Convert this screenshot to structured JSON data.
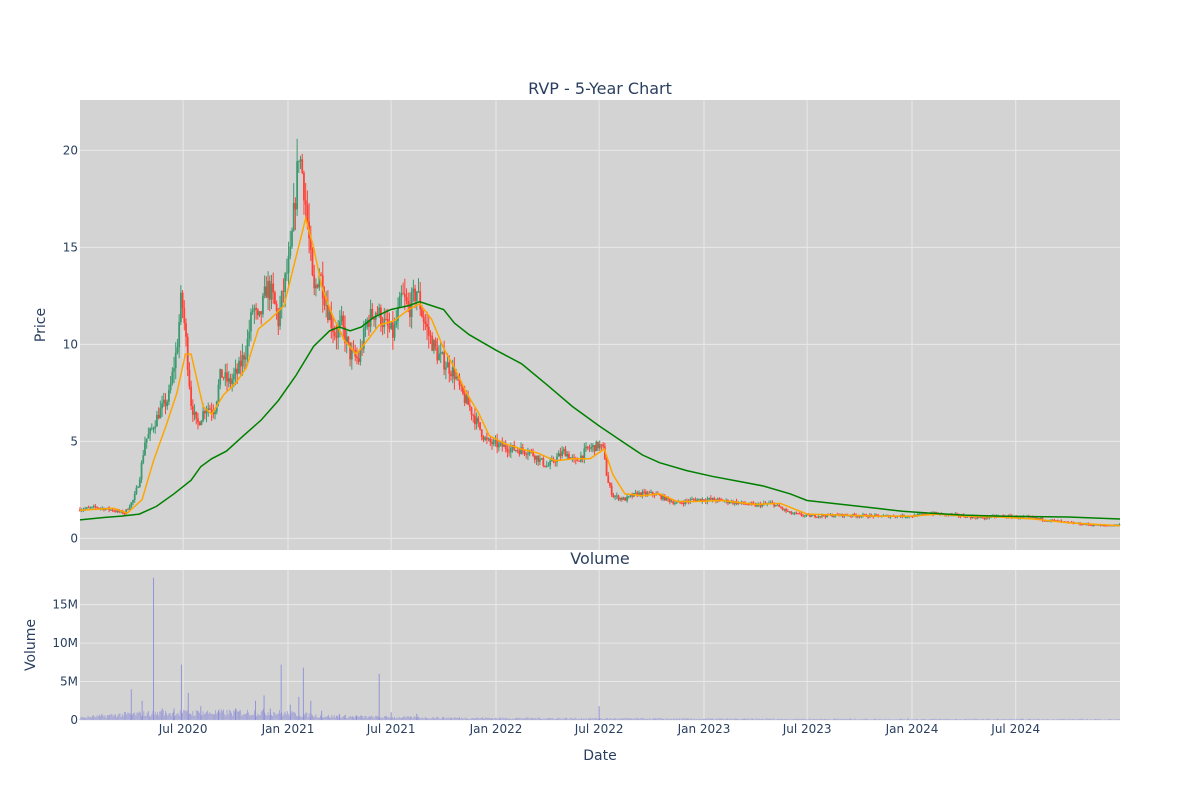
{
  "chart_data": [
    {
      "type": "candlestick",
      "title": "RVP - 5-Year Chart",
      "ylabel": "Price",
      "ylim": [
        -0.6,
        22.6
      ],
      "xlim": [
        "2020-01-02",
        "2024-12-31"
      ],
      "y_ticks": [
        0,
        5,
        10,
        15,
        20
      ],
      "grid": true,
      "colors": {
        "up": "#3d9970",
        "down": "#ff4136",
        "ma_short": "#ffa500",
        "ma_long": "#008000",
        "plot_bg": "#d3d3d3",
        "grid": "#e8e8e8"
      },
      "price_path": [
        [
          "2020-01-02",
          1.5
        ],
        [
          "2020-02-01",
          1.6
        ],
        [
          "2020-03-01",
          1.45
        ],
        [
          "2020-03-20",
          1.3
        ],
        [
          "2020-04-05",
          2.0
        ],
        [
          "2020-04-15",
          3.0
        ],
        [
          "2020-04-25",
          5.0
        ],
        [
          "2020-05-05",
          5.5
        ],
        [
          "2020-05-20",
          6.5
        ],
        [
          "2020-06-05",
          7.2
        ],
        [
          "2020-06-20",
          9.8
        ],
        [
          "2020-06-28",
          12.5
        ],
        [
          "2020-07-05",
          10.5
        ],
        [
          "2020-07-15",
          7.0
        ],
        [
          "2020-07-25",
          5.8
        ],
        [
          "2020-08-10",
          6.8
        ],
        [
          "2020-08-25",
          6.6
        ],
        [
          "2020-09-05",
          8.5
        ],
        [
          "2020-09-20",
          8.0
        ],
        [
          "2020-10-05",
          8.6
        ],
        [
          "2020-10-20",
          9.8
        ],
        [
          "2020-11-01",
          12.0
        ],
        [
          "2020-11-10",
          11.0
        ],
        [
          "2020-11-25",
          13.0
        ],
        [
          "2020-12-05",
          12.5
        ],
        [
          "2020-12-15",
          11.2
        ],
        [
          "2020-12-25",
          13.0
        ],
        [
          "2021-01-05",
          14.5
        ],
        [
          "2021-01-15",
          18.0
        ],
        [
          "2021-01-20",
          20.0
        ],
        [
          "2021-01-28",
          18.5
        ],
        [
          "2021-02-05",
          16.0
        ],
        [
          "2021-02-15",
          12.5
        ],
        [
          "2021-02-25",
          13.8
        ],
        [
          "2021-03-10",
          12.0
        ],
        [
          "2021-03-25",
          10.5
        ],
        [
          "2021-04-05",
          11.0
        ],
        [
          "2021-04-20",
          9.5
        ],
        [
          "2021-05-05",
          9.2
        ],
        [
          "2021-05-20",
          11.2
        ],
        [
          "2021-06-05",
          11.8
        ],
        [
          "2021-06-20",
          11.0
        ],
        [
          "2021-07-05",
          10.5
        ],
        [
          "2021-07-20",
          12.5
        ],
        [
          "2021-08-01",
          11.8
        ],
        [
          "2021-08-15",
          12.8
        ],
        [
          "2021-08-25",
          11.5
        ],
        [
          "2021-09-05",
          10.5
        ],
        [
          "2021-09-20",
          9.5
        ],
        [
          "2021-10-05",
          9.0
        ],
        [
          "2021-10-20",
          8.5
        ],
        [
          "2021-11-01",
          7.5
        ],
        [
          "2021-11-15",
          6.8
        ],
        [
          "2021-12-01",
          5.8
        ],
        [
          "2021-12-15",
          5.0
        ],
        [
          "2022-01-05",
          4.8
        ],
        [
          "2022-02-01",
          4.6
        ],
        [
          "2022-03-01",
          4.5
        ],
        [
          "2022-04-01",
          3.7
        ],
        [
          "2022-05-01",
          4.5
        ],
        [
          "2022-05-20",
          3.9
        ],
        [
          "2022-06-10",
          4.6
        ],
        [
          "2022-07-01",
          4.8
        ],
        [
          "2022-07-10",
          4.5
        ],
        [
          "2022-07-15",
          3.0
        ],
        [
          "2022-07-25",
          2.2
        ],
        [
          "2022-08-15",
          2.0
        ],
        [
          "2022-09-05",
          2.3
        ],
        [
          "2022-10-05",
          2.3
        ],
        [
          "2022-11-15",
          1.8
        ],
        [
          "2022-12-15",
          2.0
        ],
        [
          "2023-01-15",
          2.0
        ],
        [
          "2023-02-15",
          1.9
        ],
        [
          "2023-04-01",
          1.7
        ],
        [
          "2023-05-01",
          1.8
        ],
        [
          "2023-06-01",
          1.3
        ],
        [
          "2023-07-01",
          1.15
        ],
        [
          "2023-09-01",
          1.2
        ],
        [
          "2023-11-01",
          1.15
        ],
        [
          "2024-01-01",
          1.15
        ],
        [
          "2024-02-01",
          1.3
        ],
        [
          "2024-03-15",
          1.2
        ],
        [
          "2024-05-01",
          1.05
        ],
        [
          "2024-06-01",
          1.15
        ],
        [
          "2024-08-01",
          1.05
        ],
        [
          "2024-10-01",
          0.8
        ],
        [
          "2024-12-01",
          0.65
        ],
        [
          "2024-12-31",
          0.7
        ]
      ],
      "ma_short": [
        [
          "2020-01-02",
          1.45
        ],
        [
          "2020-03-01",
          1.55
        ],
        [
          "2020-03-25",
          1.3
        ],
        [
          "2020-04-20",
          2.0
        ],
        [
          "2020-05-10",
          4.0
        ],
        [
          "2020-06-01",
          5.8
        ],
        [
          "2020-06-20",
          7.5
        ],
        [
          "2020-07-05",
          9.5
        ],
        [
          "2020-07-15",
          9.5
        ],
        [
          "2020-08-05",
          6.8
        ],
        [
          "2020-08-20",
          6.4
        ],
        [
          "2020-09-10",
          7.4
        ],
        [
          "2020-10-01",
          8.0
        ],
        [
          "2020-10-20",
          8.8
        ],
        [
          "2020-11-10",
          10.8
        ],
        [
          "2020-12-01",
          11.3
        ],
        [
          "2020-12-25",
          12.0
        ],
        [
          "2021-01-15",
          14.5
        ],
        [
          "2021-02-01",
          16.5
        ],
        [
          "2021-02-15",
          15.0
        ],
        [
          "2021-03-01",
          13.0
        ],
        [
          "2021-03-20",
          11.5
        ],
        [
          "2021-04-10",
          10.2
        ],
        [
          "2021-05-01",
          9.5
        ],
        [
          "2021-05-20",
          10.2
        ],
        [
          "2021-06-10",
          11.0
        ],
        [
          "2021-07-05",
          11.2
        ],
        [
          "2021-08-01",
          11.8
        ],
        [
          "2021-08-20",
          12.1
        ],
        [
          "2021-09-10",
          11.3
        ],
        [
          "2021-10-01",
          9.8
        ],
        [
          "2021-10-20",
          8.8
        ],
        [
          "2021-11-10",
          7.5
        ],
        [
          "2021-12-01",
          6.5
        ],
        [
          "2021-12-20",
          5.3
        ],
        [
          "2022-01-15",
          4.9
        ],
        [
          "2022-02-15",
          4.6
        ],
        [
          "2022-03-15",
          4.4
        ],
        [
          "2022-04-15",
          4.0
        ],
        [
          "2022-05-15",
          4.1
        ],
        [
          "2022-06-15",
          4.1
        ],
        [
          "2022-07-10",
          4.6
        ],
        [
          "2022-07-25",
          3.3
        ],
        [
          "2022-08-15",
          2.3
        ],
        [
          "2022-09-15",
          2.2
        ],
        [
          "2022-10-15",
          2.3
        ],
        [
          "2022-11-15",
          1.9
        ],
        [
          "2022-12-15",
          1.9
        ],
        [
          "2023-02-01",
          1.95
        ],
        [
          "2023-04-01",
          1.75
        ],
        [
          "2023-05-15",
          1.8
        ],
        [
          "2023-07-01",
          1.25
        ],
        [
          "2023-09-01",
          1.2
        ],
        [
          "2023-11-01",
          1.15
        ],
        [
          "2024-01-01",
          1.15
        ],
        [
          "2024-02-15",
          1.25
        ],
        [
          "2024-04-01",
          1.15
        ],
        [
          "2024-06-01",
          1.1
        ],
        [
          "2024-08-01",
          1.0
        ],
        [
          "2024-10-01",
          0.8
        ],
        [
          "2024-12-31",
          0.65
        ]
      ],
      "ma_long": [
        [
          "2020-01-02",
          0.95
        ],
        [
          "2020-02-15",
          1.08
        ],
        [
          "2020-03-15",
          1.15
        ],
        [
          "2020-04-15",
          1.25
        ],
        [
          "2020-05-15",
          1.65
        ],
        [
          "2020-06-15",
          2.3
        ],
        [
          "2020-07-15",
          3.0
        ],
        [
          "2020-08-01",
          3.7
        ],
        [
          "2020-08-20",
          4.1
        ],
        [
          "2020-09-15",
          4.5
        ],
        [
          "2020-10-15",
          5.3
        ],
        [
          "2020-11-15",
          6.1
        ],
        [
          "2020-12-15",
          7.1
        ],
        [
          "2021-01-15",
          8.4
        ],
        [
          "2021-02-15",
          9.9
        ],
        [
          "2021-03-15",
          10.7
        ],
        [
          "2021-04-01",
          10.9
        ],
        [
          "2021-04-20",
          10.7
        ],
        [
          "2021-05-10",
          10.9
        ],
        [
          "2021-06-01",
          11.4
        ],
        [
          "2021-07-01",
          11.8
        ],
        [
          "2021-08-01",
          12.0
        ],
        [
          "2021-08-20",
          12.2
        ],
        [
          "2021-09-10",
          12.0
        ],
        [
          "2021-10-01",
          11.8
        ],
        [
          "2021-10-20",
          11.1
        ],
        [
          "2021-11-15",
          10.5
        ],
        [
          "2022-01-01",
          9.7
        ],
        [
          "2022-02-15",
          9.0
        ],
        [
          "2022-04-01",
          7.9
        ],
        [
          "2022-05-15",
          6.8
        ],
        [
          "2022-07-01",
          5.8
        ],
        [
          "2022-08-15",
          4.9
        ],
        [
          "2022-09-15",
          4.3
        ],
        [
          "2022-10-15",
          3.9
        ],
        [
          "2022-12-01",
          3.5
        ],
        [
          "2023-01-15",
          3.2
        ],
        [
          "2023-03-01",
          2.95
        ],
        [
          "2023-04-15",
          2.7
        ],
        [
          "2023-06-01",
          2.3
        ],
        [
          "2023-07-01",
          1.95
        ],
        [
          "2023-08-15",
          1.8
        ],
        [
          "2023-10-15",
          1.6
        ],
        [
          "2023-12-15",
          1.4
        ],
        [
          "2024-02-01",
          1.3
        ],
        [
          "2024-04-01",
          1.2
        ],
        [
          "2024-06-01",
          1.15
        ],
        [
          "2024-08-01",
          1.12
        ],
        [
          "2024-10-01",
          1.1
        ],
        [
          "2024-12-31",
          1.0
        ]
      ]
    },
    {
      "type": "bar",
      "title": "Volume",
      "xlabel": "Date",
      "ylabel": "Volume",
      "ylim": [
        0,
        19500000
      ],
      "y_ticks": [
        0,
        5000000,
        10000000,
        15000000
      ],
      "y_tick_labels": [
        "0",
        "5M",
        "10M",
        "15M"
      ],
      "x_ticks": [
        "2020-07-01",
        "2021-01-01",
        "2021-07-01",
        "2022-01-01",
        "2022-07-01",
        "2023-01-01",
        "2023-07-01",
        "2024-01-01",
        "2024-07-01"
      ],
      "x_tick_labels": [
        "Jul 2020",
        "Jan 2021",
        "Jul 2021",
        "Jan 2022",
        "Jul 2022",
        "Jan 2023",
        "Jul 2023",
        "Jan 2024",
        "Jul 2024"
      ],
      "grid": true,
      "colors": {
        "bar": "#8a8ad6"
      },
      "spikes": [
        [
          "2020-04-01",
          4000000
        ],
        [
          "2020-04-20",
          2500000
        ],
        [
          "2020-05-10",
          18500000
        ],
        [
          "2020-05-25",
          1500000
        ],
        [
          "2020-06-15",
          1500000
        ],
        [
          "2020-06-28",
          7200000
        ],
        [
          "2020-07-10",
          3500000
        ],
        [
          "2020-08-01",
          1800000
        ],
        [
          "2020-09-01",
          1200000
        ],
        [
          "2020-10-01",
          1500000
        ],
        [
          "2020-11-05",
          2500000
        ],
        [
          "2020-11-20",
          3200000
        ],
        [
          "2020-12-01",
          1500000
        ],
        [
          "2020-12-20",
          7200000
        ],
        [
          "2021-01-05",
          2000000
        ],
        [
          "2021-01-20",
          3000000
        ],
        [
          "2021-01-28",
          6800000
        ],
        [
          "2021-02-10",
          2500000
        ],
        [
          "2021-03-01",
          1200000
        ],
        [
          "2021-04-01",
          800000
        ],
        [
          "2021-05-01",
          600000
        ],
        [
          "2021-06-10",
          6000000
        ],
        [
          "2021-07-01",
          1000000
        ],
        [
          "2021-08-15",
          800000
        ],
        [
          "2022-07-01",
          1800000
        ]
      ],
      "baseline": [
        [
          "2020-01-02",
          300000
        ],
        [
          "2020-03-15",
          700000
        ],
        [
          "2020-06-01",
          900000
        ],
        [
          "2020-12-01",
          1000000
        ],
        [
          "2021-03-01",
          500000
        ],
        [
          "2021-07-01",
          350000
        ],
        [
          "2021-12-01",
          250000
        ],
        [
          "2022-06-01",
          200000
        ],
        [
          "2023-01-01",
          150000
        ],
        [
          "2024-01-01",
          120000
        ],
        [
          "2024-12-31",
          100000
        ]
      ]
    }
  ]
}
